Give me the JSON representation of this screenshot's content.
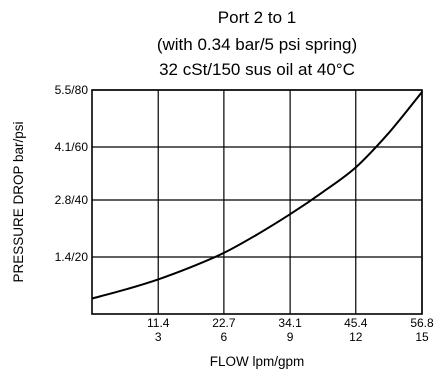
{
  "title_lines": [
    "Port 2 to 1",
    "(with 0.34 bar/5 psi spring)",
    "32 cSt/150 sus oil at 40°C"
  ],
  "chart_data": {
    "type": "line",
    "title": "Port 2 to 1 (with 0.34 bar/5 psi spring) 32 cSt/150 sus oil at 40°C",
    "xlabel": "FLOW lpm/gpm",
    "ylabel": "PRESSURE DROP bar/psi",
    "x_unit_primary": "lpm",
    "y_unit_primary": "bar",
    "xlim": [
      0,
      56.8
    ],
    "ylim": [
      0,
      5.5
    ],
    "x_ticks": [
      {
        "value": 11.4,
        "label_top": "11.4",
        "label_bottom": "3"
      },
      {
        "value": 22.7,
        "label_top": "22.7",
        "label_bottom": "6"
      },
      {
        "value": 34.1,
        "label_top": "34.1",
        "label_bottom": "9"
      },
      {
        "value": 45.4,
        "label_top": "45.4",
        "label_bottom": "12"
      },
      {
        "value": 56.8,
        "label_top": "56.8",
        "label_bottom": "15"
      }
    ],
    "y_ticks": [
      {
        "value": 1.4,
        "label": "1.4/20"
      },
      {
        "value": 2.8,
        "label": "2.8/40"
      },
      {
        "value": 4.1,
        "label": "4.1/60"
      },
      {
        "value": 5.5,
        "label": "5.5/80"
      }
    ],
    "grid": true,
    "series": [
      {
        "x": [
          0,
          5.7,
          11.4,
          17,
          22.7,
          28.4,
          34.1,
          39.8,
          45.4,
          51.1,
          56.8
        ],
        "y": [
          0.38,
          0.6,
          0.85,
          1.15,
          1.5,
          1.95,
          2.45,
          3.0,
          3.6,
          4.45,
          5.45
        ]
      }
    ]
  }
}
